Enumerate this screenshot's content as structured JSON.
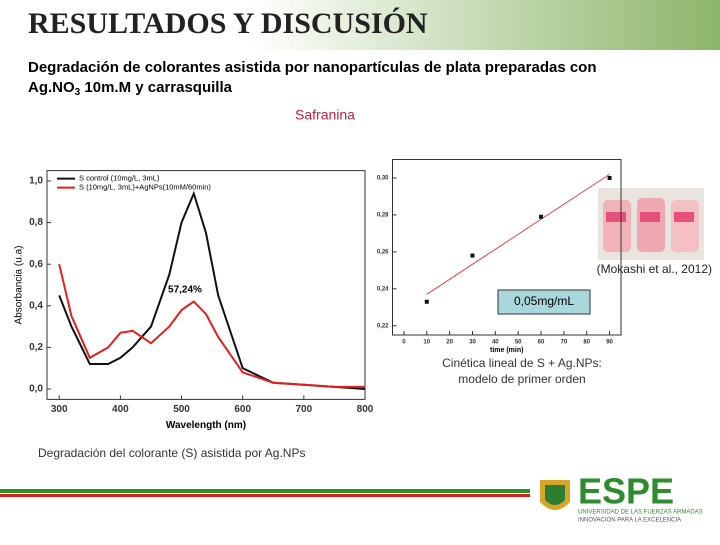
{
  "slide": {
    "title": "RESULTADOS Y DISCUSIÓN",
    "subtitle": [
      "Degradación de colorantes asistida por nanopartículas de plata preparadas con",
      "Ag.NO",
      "3",
      " 10m.M y carrasquilla"
    ],
    "section": "Safranina",
    "citation": "(Mokashi et al., 2012)",
    "concentration": "0,05mg/mL",
    "caption_right": [
      "Cinética lineal de S + Ag.NPs:",
      "modelo de primer orden"
    ],
    "caption_left": "Degradación del colorante (S) asistida por Ag.NPs",
    "logo": "ESPE",
    "logo_sub": "UNIVERSIDAD DE LAS FUERZAS ARMADAS",
    "logo_motto": "INNOVACIÓN PARA LA EXCELENCIA"
  },
  "chart_data": [
    {
      "type": "line",
      "x_label": "Wavelength (nm)",
      "y_label": "Absorbancia (u.a)",
      "annotation": "57,24%",
      "x": [
        300,
        320,
        350,
        380,
        400,
        420,
        450,
        480,
        500,
        520,
        540,
        560,
        600,
        650,
        700,
        750,
        800
      ],
      "series": [
        {
          "name": "S control (10mg/L, 3mL)",
          "color": "#111111",
          "values": [
            0.45,
            0.3,
            0.12,
            0.12,
            0.15,
            0.2,
            0.3,
            0.55,
            0.8,
            0.94,
            0.75,
            0.45,
            0.1,
            0.03,
            0.02,
            0.01,
            0.0
          ]
        },
        {
          "name": "S (10mg/L, 3mL)+AgNPs(10mM/60min)",
          "color": "#e02020",
          "values": [
            0.6,
            0.35,
            0.15,
            0.2,
            0.27,
            0.28,
            0.22,
            0.3,
            0.38,
            0.42,
            0.36,
            0.25,
            0.08,
            0.03,
            0.02,
            0.01,
            0.01
          ]
        }
      ],
      "xlim": [
        280,
        800
      ],
      "xticks": [
        300,
        400,
        500,
        600,
        700,
        800
      ],
      "ylim": [
        -0.05,
        1.05
      ],
      "yticks": [
        {
          "value": 0,
          "label": "0,0"
        },
        {
          "value": 0.2,
          "label": "0,2"
        },
        {
          "value": 0.4,
          "label": "0,4"
        },
        {
          "value": 0.6,
          "label": "0,6"
        },
        {
          "value": 0.8,
          "label": "0,8"
        },
        {
          "value": 1.0,
          "label": "1,0"
        }
      ]
    },
    {
      "type": "scatter",
      "x_label": "time (min)",
      "trendline": true,
      "color": "#111111",
      "trend_color": "#e04040",
      "x": [
        10,
        30,
        60,
        90
      ],
      "values": [
        0.233,
        0.258,
        0.279,
        0.3
      ],
      "xlim": [
        -5,
        95
      ],
      "xticks": [
        0,
        10,
        20,
        30,
        40,
        50,
        60,
        70,
        80,
        90
      ],
      "ylim": [
        0.215,
        0.31
      ],
      "yticks": [
        {
          "value": 0.22,
          "label": "0,22"
        },
        {
          "value": 0.24,
          "label": "0,24"
        },
        {
          "value": 0.26,
          "label": "0,26"
        },
        {
          "value": 0.28,
          "label": "0,28"
        },
        {
          "value": 0.3,
          "label": "0,30"
        }
      ]
    }
  ]
}
